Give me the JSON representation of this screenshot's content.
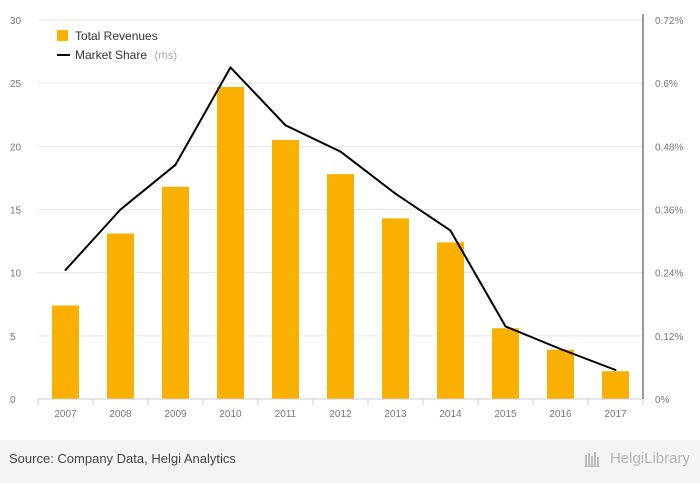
{
  "chart_data": {
    "type": "bar",
    "categories": [
      "2007",
      "2008",
      "2009",
      "2010",
      "2011",
      "2012",
      "2013",
      "2014",
      "2015",
      "2016",
      "2017"
    ],
    "series": [
      {
        "name": "Total Revenues",
        "type": "bar",
        "axis": "left",
        "color": "#f9b000",
        "values": [
          7.4,
          13.1,
          16.8,
          24.7,
          20.5,
          17.8,
          14.3,
          12.4,
          5.6,
          3.9,
          2.2
        ]
      },
      {
        "name": "Market Share",
        "note": "(rhs)",
        "type": "line",
        "axis": "right",
        "color": "#000000",
        "values": [
          0.00245,
          0.0036,
          0.00445,
          0.0063,
          0.0052,
          0.0047,
          0.0039,
          0.0032,
          0.00138,
          0.00095,
          0.00055
        ]
      }
    ],
    "ylim": [
      0,
      30
    ],
    "yticks": [
      "0",
      "5",
      "10",
      "15",
      "20",
      "25",
      "30"
    ],
    "y2lim": [
      0,
      0.0072
    ],
    "y2ticks": [
      "0%",
      "0.12%",
      "0.24%",
      "0.36%",
      "0.48%",
      "0.6%",
      "0.72%"
    ],
    "legend_position": "top-left",
    "grid": true
  },
  "footer": {
    "source": "Source: Company Data, Helgi Analytics",
    "brand": "HelgiLibrary"
  }
}
